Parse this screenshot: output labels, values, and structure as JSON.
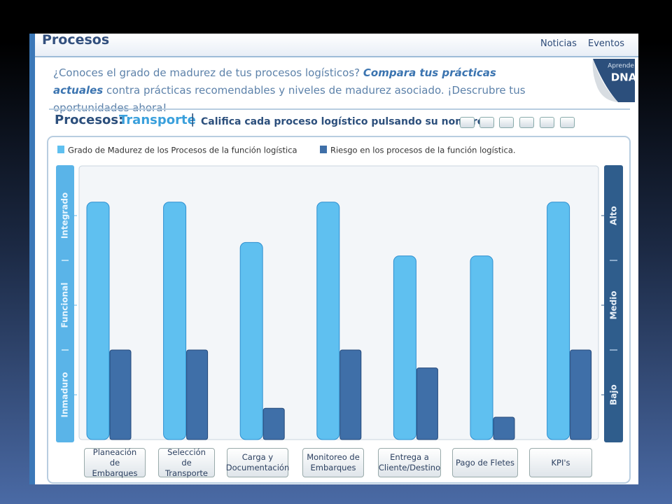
{
  "header": {
    "title": "Procesos",
    "nav": [
      "Noticias",
      "Eventos"
    ]
  },
  "badge": {
    "top": "Aprende",
    "bottom": "DNA"
  },
  "intro": {
    "lead": "¿Conoces el grado de madurez de tus procesos logísticos?",
    "emphasis": "Compara tus prácticas actuales",
    "rest": "contra prácticas recomendables y niveles de madurez asociado. ¡Descrubre tus oportunidades ahora!"
  },
  "section": {
    "label": "Procesos:",
    "name": "Transporte",
    "separator": "|",
    "instruction": "Califica cada proceso logístico pulsando su nombre"
  },
  "chart_data": {
    "type": "bar",
    "categories": [
      "Planeación de Embarques",
      "Selección de Transporte",
      "Carga y Documentación",
      "Monitoreo de Embarques",
      "Entrega a Cliente/Destino",
      "Pago de Fletes",
      "KPI's"
    ],
    "series": [
      {
        "name": "Grado de Madurez de los Procesos de la función logística",
        "color": "#5fc0f0",
        "values": [
          2.65,
          2.65,
          2.2,
          2.65,
          2.05,
          2.05,
          2.65
        ]
      },
      {
        "name": "Riesgo en los procesos de la función logística.",
        "color": "#3f6fa8",
        "axis": "y2",
        "values": [
          1,
          1,
          0.35,
          1,
          0.8,
          0.25,
          1
        ]
      }
    ],
    "ylim": [
      0,
      3
    ],
    "yticks": [
      {
        "value": 0.5,
        "label": "Inmaduro"
      },
      {
        "value": 1.5,
        "label": "Funcional"
      },
      {
        "value": 2.5,
        "label": "Integrado"
      }
    ],
    "y2lim": [
      0,
      3
    ],
    "y2ticks": [
      {
        "value": 0.5,
        "label": "Bajo"
      },
      {
        "value": 1.5,
        "label": "Medio"
      },
      {
        "value": 2.5,
        "label": "Alto"
      }
    ]
  }
}
